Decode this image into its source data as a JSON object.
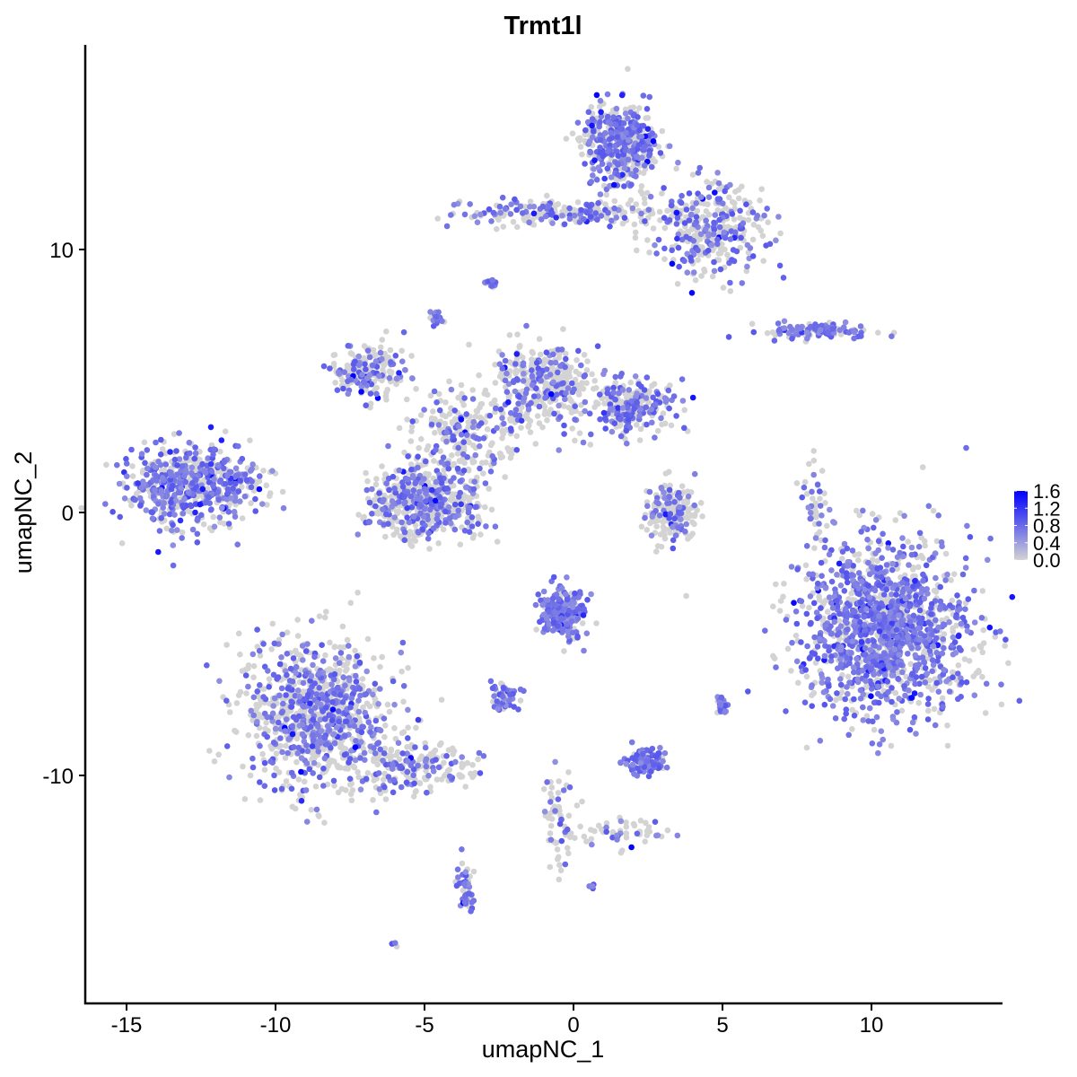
{
  "chart_data": {
    "type": "scatter",
    "title": "Trmt1l",
    "xlabel": "umapNC_1",
    "ylabel": "umapNC_2",
    "xlim": [
      -16.4,
      14.4
    ],
    "ylim": [
      -18.7,
      17.8
    ],
    "x_ticks": [
      -15,
      -10,
      -5,
      0,
      5,
      10
    ],
    "x_tick_labels": [
      "-15",
      "-10",
      "-5",
      "0",
      "5",
      "10"
    ],
    "y_ticks": [
      -10,
      0,
      10
    ],
    "y_tick_labels": [
      "-10",
      "0",
      "10"
    ],
    "grid": false,
    "legend": {
      "placement": "right",
      "type": "colorbar",
      "range": [
        0,
        1.6
      ],
      "tick_labels": [
        "1.6",
        "1.2",
        "0.8",
        "0.4",
        "0.0"
      ],
      "ticks": [
        1.6,
        1.2,
        0.8,
        0.4,
        0.0
      ],
      "low_color": "#D3D3D3",
      "high_color": "#0000FF"
    },
    "clusters": [
      {
        "cx": -12.8,
        "cy": 1.0,
        "sx": 1.1,
        "sy": 0.75,
        "n": 600,
        "frac_expr": 0.6
      },
      {
        "cx": -8.7,
        "cy": -7.6,
        "sx": 1.2,
        "sy": 1.4,
        "n": 900,
        "frac_expr": 0.45
      },
      {
        "cx": -5.5,
        "cy": -9.7,
        "sx": 1.0,
        "sy": 0.5,
        "n": 200,
        "frac_expr": 0.3
      },
      {
        "cx": -3.6,
        "cy": -14.4,
        "sx": 0.15,
        "sy": 0.5,
        "n": 50,
        "frac_expr": 0.7
      },
      {
        "cx": 10.5,
        "cy": -4.4,
        "sx": 1.4,
        "sy": 1.6,
        "n": 1400,
        "frac_expr": 0.65
      },
      {
        "cx": 1.6,
        "cy": 14.0,
        "sx": 0.6,
        "sy": 0.8,
        "n": 450,
        "frac_expr": 0.5
      },
      {
        "cx": 4.6,
        "cy": 10.8,
        "sx": 0.9,
        "sy": 0.9,
        "n": 350,
        "frac_expr": 0.4
      },
      {
        "cx": -0.5,
        "cy": 11.4,
        "sx": 1.6,
        "sy": 0.25,
        "n": 220,
        "frac_expr": 0.4
      },
      {
        "cx": -5.1,
        "cy": 0.4,
        "sx": 0.9,
        "sy": 0.7,
        "n": 550,
        "frac_expr": 0.35
      },
      {
        "cx": -6.9,
        "cy": 5.4,
        "sx": 0.6,
        "sy": 0.5,
        "n": 200,
        "frac_expr": 0.4
      },
      {
        "cx": -3.8,
        "cy": 2.8,
        "sx": 0.8,
        "sy": 1.0,
        "n": 250,
        "frac_expr": 0.3
      },
      {
        "cx": -1.0,
        "cy": 4.8,
        "sx": 0.8,
        "sy": 0.8,
        "n": 350,
        "frac_expr": 0.35
      },
      {
        "cx": 1.9,
        "cy": 4.0,
        "sx": 0.7,
        "sy": 0.5,
        "n": 250,
        "frac_expr": 0.5
      },
      {
        "cx": 3.3,
        "cy": 0.0,
        "sx": 0.4,
        "sy": 0.6,
        "n": 180,
        "frac_expr": 0.3
      },
      {
        "cx": -0.4,
        "cy": -3.8,
        "sx": 0.4,
        "sy": 0.5,
        "n": 220,
        "frac_expr": 0.7
      },
      {
        "cx": 2.4,
        "cy": -9.5,
        "sx": 0.35,
        "sy": 0.25,
        "n": 90,
        "frac_expr": 0.8
      },
      {
        "cx": 8.2,
        "cy": 6.9,
        "sx": 0.9,
        "sy": 0.15,
        "n": 120,
        "frac_expr": 0.6
      },
      {
        "cx": -2.3,
        "cy": -7.0,
        "sx": 0.25,
        "sy": 0.3,
        "n": 50,
        "frac_expr": 0.6
      },
      {
        "cx": 5.0,
        "cy": -7.3,
        "sx": 0.1,
        "sy": 0.2,
        "n": 30,
        "frac_expr": 0.8
      },
      {
        "cx": -4.6,
        "cy": 7.4,
        "sx": 0.12,
        "sy": 0.15,
        "n": 25,
        "frac_expr": 0.8
      },
      {
        "cx": -2.8,
        "cy": 8.7,
        "sx": 0.12,
        "sy": 0.1,
        "n": 15,
        "frac_expr": 0.8
      },
      {
        "cx": 8.1,
        "cy": 0.5,
        "sx": 0.2,
        "sy": 0.7,
        "n": 40,
        "frac_expr": 0.5
      },
      {
        "cx": -0.5,
        "cy": -11.5,
        "sx": 0.3,
        "sy": 1.0,
        "n": 60,
        "frac_expr": 0.2
      },
      {
        "cx": 1.5,
        "cy": -12.1,
        "sx": 0.8,
        "sy": 0.3,
        "n": 50,
        "frac_expr": 0.3
      },
      {
        "cx": 0.6,
        "cy": -14.2,
        "sx": 0.05,
        "sy": 0.05,
        "n": 4,
        "frac_expr": 1.0
      },
      {
        "cx": -6.0,
        "cy": -16.4,
        "sx": 0.05,
        "sy": 0.05,
        "n": 4,
        "frac_expr": 0.5
      }
    ]
  }
}
